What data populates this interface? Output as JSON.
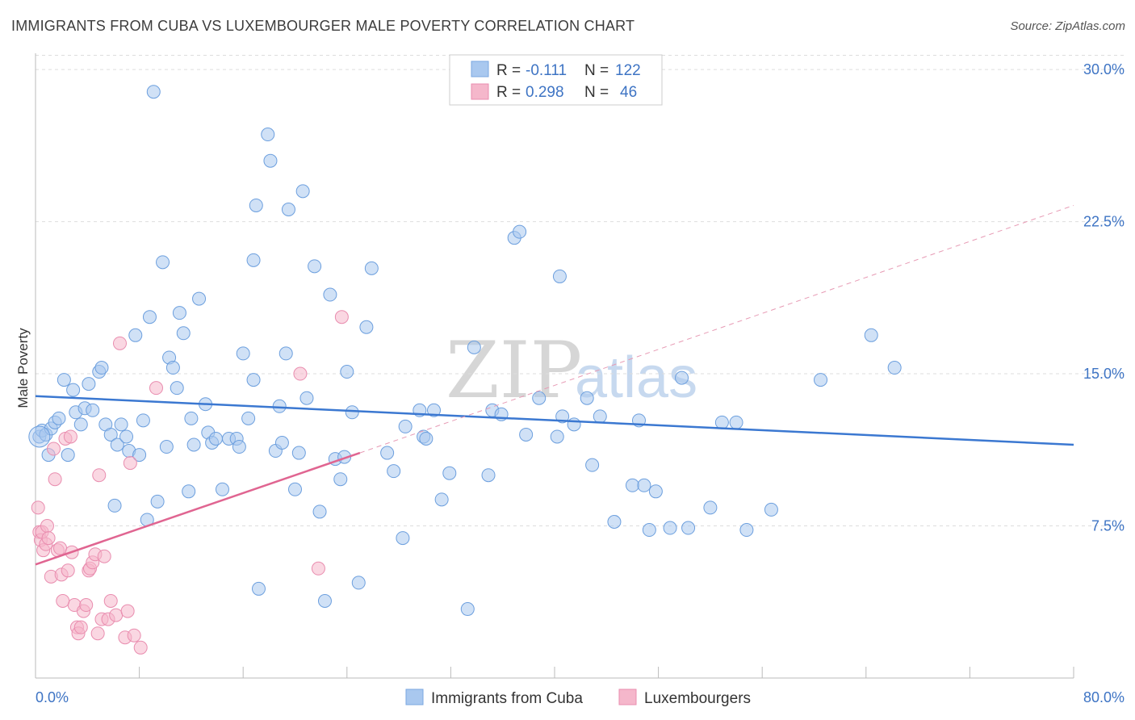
{
  "title": "IMMIGRANTS FROM CUBA VS LUXEMBOURGER MALE POVERTY CORRELATION CHART",
  "source": "Source: ZipAtlas.com",
  "watermark": {
    "zip": "ZIP",
    "atlas": "atlas"
  },
  "colors": {
    "blue": "#3b78d1",
    "blue_fill": "#a9c8ef",
    "pink": "#e06591",
    "pink_fill": "#f5b7cb",
    "grid": "#dddddd",
    "axis_label": "#3e74c4"
  },
  "legend": {
    "rows": [
      {
        "r_label": "R = ",
        "r_value": "-0.111",
        "n_label": "N = ",
        "n_value": "122"
      },
      {
        "r_label": "R = ",
        "r_value": "0.298",
        "n_label": "N = ",
        "n_value": "46"
      }
    ]
  },
  "bottom_legend": [
    "Immigrants from Cuba",
    "Luxembourgers"
  ],
  "chart_data": {
    "type": "scatter",
    "title": "IMMIGRANTS FROM CUBA VS LUXEMBOURGER MALE POVERTY CORRELATION CHART",
    "xlabel": "",
    "ylabel": "Male Poverty",
    "xlim": [
      0,
      80
    ],
    "ylim": [
      0,
      30.8
    ],
    "x_tick_labels": [
      "0.0%",
      "80.0%"
    ],
    "y_ticks": [
      7.5,
      15.0,
      22.5,
      30.0
    ],
    "y_tick_labels": [
      "7.5%",
      "15.0%",
      "22.5%",
      "30.0%"
    ],
    "series": [
      {
        "name": "Immigrants from Cuba",
        "color": "#3b78d1",
        "trend": {
          "x": [
            0,
            80
          ],
          "y": [
            13.9,
            11.5
          ]
        },
        "points": [
          [
            0.3,
            11.9
          ],
          [
            0.5,
            12.2
          ],
          [
            0.8,
            12.0
          ],
          [
            1.0,
            11.0
          ],
          [
            1.2,
            12.3
          ],
          [
            1.5,
            12.6
          ],
          [
            1.8,
            12.8
          ],
          [
            2.2,
            14.7
          ],
          [
            2.5,
            11.0
          ],
          [
            2.9,
            14.2
          ],
          [
            3.1,
            13.1
          ],
          [
            3.5,
            12.5
          ],
          [
            3.8,
            13.3
          ],
          [
            4.1,
            14.5
          ],
          [
            4.4,
            13.2
          ],
          [
            4.9,
            15.1
          ],
          [
            5.1,
            15.3
          ],
          [
            5.4,
            12.5
          ],
          [
            5.8,
            12.0
          ],
          [
            6.1,
            8.5
          ],
          [
            6.3,
            11.5
          ],
          [
            6.6,
            12.5
          ],
          [
            7.0,
            11.9
          ],
          [
            7.2,
            11.2
          ],
          [
            7.7,
            16.9
          ],
          [
            8.0,
            11.0
          ],
          [
            8.3,
            12.7
          ],
          [
            8.6,
            7.8
          ],
          [
            8.8,
            17.8
          ],
          [
            9.4,
            8.7
          ],
          [
            9.1,
            28.9
          ],
          [
            9.8,
            20.5
          ],
          [
            10.1,
            11.4
          ],
          [
            10.3,
            15.8
          ],
          [
            10.6,
            15.3
          ],
          [
            10.9,
            14.3
          ],
          [
            11.1,
            18.0
          ],
          [
            11.4,
            17.0
          ],
          [
            11.8,
            9.2
          ],
          [
            12.0,
            12.8
          ],
          [
            12.2,
            11.5
          ],
          [
            12.6,
            18.7
          ],
          [
            13.1,
            13.5
          ],
          [
            13.3,
            12.1
          ],
          [
            13.6,
            11.6
          ],
          [
            13.9,
            11.8
          ],
          [
            14.4,
            9.3
          ],
          [
            14.9,
            11.8
          ],
          [
            15.5,
            11.8
          ],
          [
            15.7,
            11.4
          ],
          [
            16.0,
            16.0
          ],
          [
            16.4,
            12.8
          ],
          [
            16.8,
            14.7
          ],
          [
            17.0,
            23.3
          ],
          [
            17.2,
            4.4
          ],
          [
            16.8,
            20.6
          ],
          [
            17.9,
            26.8
          ],
          [
            18.1,
            25.5
          ],
          [
            18.5,
            11.2
          ],
          [
            18.8,
            13.4
          ],
          [
            19.0,
            11.6
          ],
          [
            19.3,
            16.0
          ],
          [
            19.5,
            23.1
          ],
          [
            20.0,
            9.3
          ],
          [
            20.3,
            11.1
          ],
          [
            20.6,
            24.0
          ],
          [
            20.9,
            13.8
          ],
          [
            21.5,
            20.3
          ],
          [
            21.9,
            8.2
          ],
          [
            22.3,
            3.8
          ],
          [
            22.7,
            18.9
          ],
          [
            23.1,
            10.8
          ],
          [
            23.5,
            9.8
          ],
          [
            23.8,
            10.9
          ],
          [
            24.0,
            15.1
          ],
          [
            24.4,
            13.1
          ],
          [
            24.9,
            4.7
          ],
          [
            25.5,
            17.3
          ],
          [
            25.9,
            20.2
          ],
          [
            27.1,
            11.1
          ],
          [
            27.6,
            10.2
          ],
          [
            28.3,
            6.9
          ],
          [
            28.5,
            12.4
          ],
          [
            29.6,
            13.2
          ],
          [
            29.9,
            11.9
          ],
          [
            30.1,
            11.8
          ],
          [
            30.7,
            13.2
          ],
          [
            31.3,
            8.8
          ],
          [
            31.9,
            10.1
          ],
          [
            33.3,
            3.4
          ],
          [
            33.8,
            16.3
          ],
          [
            34.9,
            10.0
          ],
          [
            35.2,
            13.2
          ],
          [
            35.9,
            13.0
          ],
          [
            36.9,
            21.7
          ],
          [
            37.3,
            22.0
          ],
          [
            37.8,
            12.0
          ],
          [
            38.8,
            13.8
          ],
          [
            40.2,
            11.9
          ],
          [
            40.4,
            19.8
          ],
          [
            40.6,
            12.9
          ],
          [
            41.5,
            12.5
          ],
          [
            42.5,
            13.8
          ],
          [
            42.9,
            10.5
          ],
          [
            43.5,
            12.9
          ],
          [
            44.6,
            7.7
          ],
          [
            46.0,
            9.5
          ],
          [
            46.5,
            12.7
          ],
          [
            46.9,
            9.5
          ],
          [
            47.3,
            7.3
          ],
          [
            47.8,
            9.2
          ],
          [
            48.9,
            7.4
          ],
          [
            49.8,
            14.8
          ],
          [
            50.3,
            7.4
          ],
          [
            52.0,
            8.4
          ],
          [
            52.9,
            12.6
          ],
          [
            54.0,
            12.6
          ],
          [
            54.8,
            7.3
          ],
          [
            56.7,
            8.3
          ],
          [
            60.5,
            14.7
          ],
          [
            64.4,
            16.9
          ],
          [
            66.2,
            15.3
          ]
        ]
      },
      {
        "name": "Luxembourgers",
        "color": "#e06591",
        "trend": {
          "x": [
            0,
            25
          ],
          "y": [
            5.6,
            11.1
          ]
        },
        "trend_extension": {
          "x": [
            25,
            80
          ],
          "y": [
            11.1,
            23.3
          ]
        },
        "points": [
          [
            0.2,
            8.4
          ],
          [
            0.3,
            7.2
          ],
          [
            0.4,
            6.8
          ],
          [
            0.5,
            7.2
          ],
          [
            0.6,
            6.3
          ],
          [
            0.8,
            6.6
          ],
          [
            0.9,
            7.5
          ],
          [
            1.0,
            6.9
          ],
          [
            1.2,
            5.0
          ],
          [
            1.4,
            11.3
          ],
          [
            1.5,
            9.8
          ],
          [
            1.7,
            6.3
          ],
          [
            1.9,
            6.4
          ],
          [
            2.0,
            5.1
          ],
          [
            2.3,
            11.8
          ],
          [
            2.5,
            5.3
          ],
          [
            2.7,
            11.9
          ],
          [
            2.8,
            6.2
          ],
          [
            3.0,
            3.6
          ],
          [
            3.2,
            2.5
          ],
          [
            3.3,
            2.2
          ],
          [
            3.5,
            2.5
          ],
          [
            3.7,
            3.3
          ],
          [
            3.9,
            3.6
          ],
          [
            4.1,
            5.3
          ],
          [
            4.2,
            5.4
          ],
          [
            4.4,
            5.7
          ],
          [
            4.6,
            6.1
          ],
          [
            4.8,
            2.2
          ],
          [
            4.9,
            10.0
          ],
          [
            5.1,
            2.9
          ],
          [
            5.3,
            6.0
          ],
          [
            5.6,
            2.9
          ],
          [
            5.8,
            3.8
          ],
          [
            6.2,
            3.1
          ],
          [
            6.5,
            16.5
          ],
          [
            6.9,
            2.0
          ],
          [
            7.1,
            3.3
          ],
          [
            7.3,
            10.6
          ],
          [
            7.6,
            2.1
          ],
          [
            8.1,
            1.5
          ],
          [
            9.3,
            14.3
          ],
          [
            20.4,
            15.0
          ],
          [
            21.8,
            5.4
          ],
          [
            23.6,
            17.8
          ],
          [
            2.1,
            3.8
          ]
        ]
      }
    ]
  }
}
